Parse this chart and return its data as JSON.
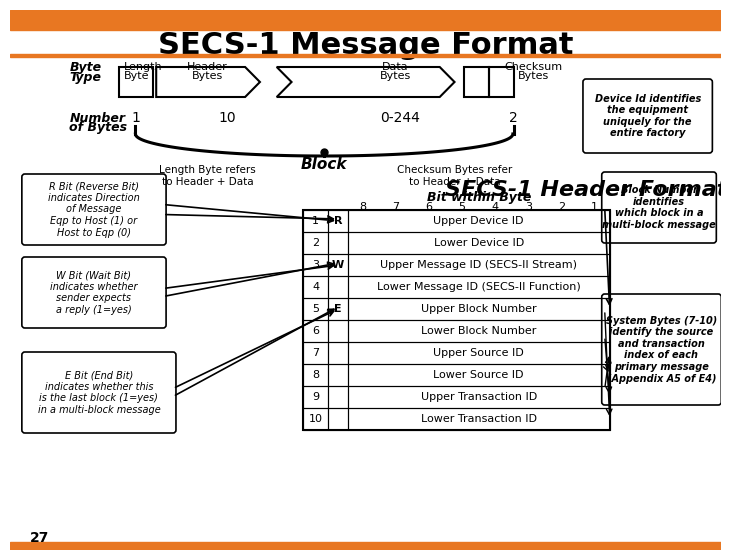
{
  "title": "SECS-1 Message Format",
  "title_fontsize": 22,
  "bg_color": "#ffffff",
  "orange_color": "#E87722",
  "header_bar_top": "#E87722",
  "header_bar_bottom": "#E87722",
  "box_edge_color": "#000000",
  "byte_labels": [
    "Byte\nType",
    "Length\nByte",
    "Header\nBytes",
    "Data\nBytes",
    "Checksum\nBytes"
  ],
  "num_bytes": [
    "1",
    "10",
    "0-244",
    "2"
  ],
  "table_rows": [
    [
      "1",
      "R",
      "Upper Device ID"
    ],
    [
      "2",
      "",
      "Lower Device ID"
    ],
    [
      "3",
      "W",
      "Upper Message ID (SECS-II Stream)"
    ],
    [
      "4",
      "",
      "Lower Message ID (SECS-II Function)"
    ],
    [
      "5",
      "E",
      "Upper Block Number"
    ],
    [
      "6",
      "",
      "Lower Block Number"
    ],
    [
      "7",
      "",
      "Upper Source ID"
    ],
    [
      "8",
      "",
      "Lower Source ID"
    ],
    [
      "9",
      "",
      "Upper Transaction ID"
    ],
    [
      "10",
      "",
      "Lower Transaction ID"
    ]
  ],
  "bit_labels": [
    "8",
    "7",
    "6",
    "5",
    "4",
    "3",
    "2",
    "1"
  ],
  "annotation_device_id": "Device Id identifies\nthe equipment\nuniquely for the\nentire factory",
  "annotation_block_number": "Block Number\nidentifies\nwhich block in a\nmulti-block message",
  "annotation_system_bytes": "System Bytes (7-10)\nidentify the source\nand transaction\nindex of each\nprimary message\n(Appendix A5 of E4)",
  "annotation_r_bit": "R Bit (Reverse Bit)\nindicates Direction\nof Message\nEqp to Host (1) or\nHost to Eqp (0)",
  "annotation_w_bit": "W Bit (Wait Bit)\nindicates whether\nsender expects\na reply (1=yes)",
  "annotation_e_bit": "E Bit (End Bit)\nindicates whether this\nis the last block (1=yes)\nin a multi-block message",
  "block_text": "Block",
  "length_note": "Length Byte refers\nto Header + Data",
  "checksum_note": "Checksum Bytes refer\nto Header + Data",
  "secs_header_title": "SECS-1 Header Format",
  "bit_within_byte": "Bit within Byte",
  "slide_number": "27"
}
